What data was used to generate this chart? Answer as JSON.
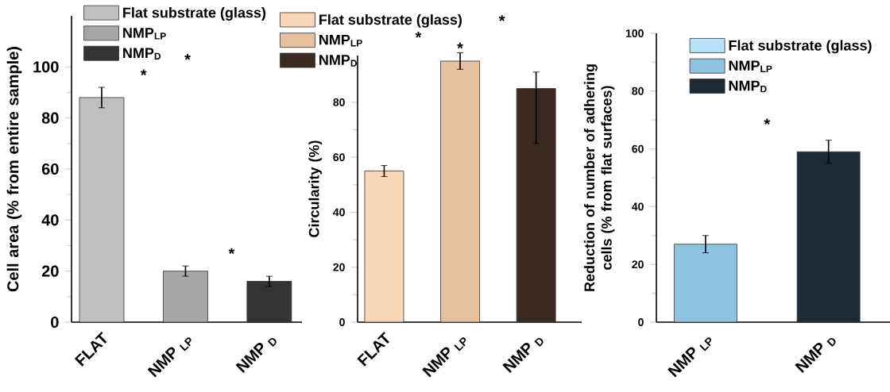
{
  "chart_data": [
    {
      "type": "bar",
      "ylabel": "Cell area (% from entire sample)",
      "categories": [
        "FLAT",
        "NMP $_{LP}$",
        "NMP $_{D}$"
      ],
      "series": [
        {
          "name": "Flat substrate (glass)",
          "color": "#c0c0c0",
          "values": [
            88,
            null,
            null
          ],
          "errors": [
            4,
            null,
            null
          ]
        },
        {
          "name": "NMP$_{LP}$",
          "color": "#a6a6a6",
          "values": [
            null,
            20,
            null
          ],
          "errors": [
            null,
            2,
            null
          ]
        },
        {
          "name": "NMP$_{D}$",
          "color": "#333333",
          "values": [
            null,
            null,
            16
          ],
          "errors": [
            null,
            null,
            2
          ]
        }
      ],
      "ylim": [
        0,
        120
      ],
      "yticks": [
        0,
        20,
        40,
        60,
        80,
        100
      ],
      "legend": "top left",
      "annotations": [
        "*",
        "*",
        "*"
      ]
    },
    {
      "type": "bar",
      "ylabel": "Circularity (%)",
      "categories": [
        "FLAT",
        "NMP $_{LP}$",
        "NMP $_{D}$"
      ],
      "series": [
        {
          "name": "Flat substrate (glass)",
          "color": "#f9d6b8",
          "values": [
            55,
            null,
            null
          ],
          "errors": [
            2,
            null,
            null
          ]
        },
        {
          "name": "NMP$_{LP}$",
          "color": "#e6bf9f",
          "values": [
            null,
            95,
            null
          ],
          "errors": [
            null,
            3,
            null
          ]
        },
        {
          "name": "NMP$_{D}$",
          "color": "#3a2a20",
          "values": [
            null,
            null,
            85
          ],
          "errors": [
            null,
            null,
            [
              65,
              91
            ]
          ]
        }
      ],
      "ylim": [
        0,
        97
      ],
      "yticks": [
        0,
        20,
        40,
        60,
        80
      ],
      "legend": "top left",
      "annotations": [
        "*",
        "*",
        "*"
      ]
    },
    {
      "type": "bar",
      "ylabel": "Reduction of number of adhering cells (% from flat surfaces)",
      "categories": [
        "NMP $_{LP}$",
        "NMP $_{D}$"
      ],
      "series": [
        {
          "name": "Flat substrate (glass)",
          "color": "#b8e2f8",
          "values": [
            null,
            null
          ]
        },
        {
          "name": "NMP$_{LP}$",
          "color": "#8fc3e0",
          "values": [
            27,
            null
          ],
          "errors": [
            3,
            null
          ]
        },
        {
          "name": "NMP$_{D}$",
          "color": "#1e2a35",
          "values": [
            null,
            59
          ],
          "errors": [
            null,
            4
          ]
        }
      ],
      "ylim": [
        0,
        100
      ],
      "yticks": [
        0,
        20,
        40,
        60,
        80,
        100
      ],
      "legend": "top left",
      "annotations": [
        "*"
      ]
    }
  ]
}
